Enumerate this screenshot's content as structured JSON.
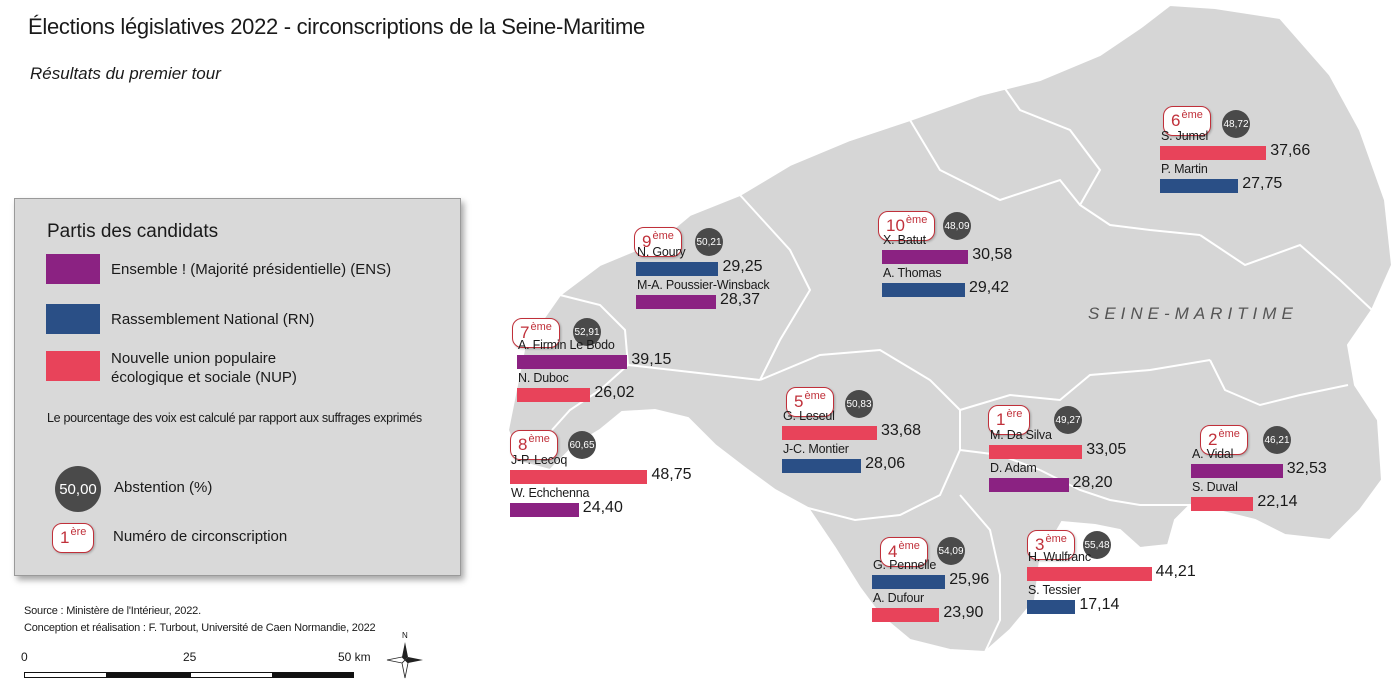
{
  "title": "Élections législatives 2022 - circonscriptions de la Seine-Maritime",
  "subtitle": "Résultats du premier tour",
  "department_label": "SEINE-MARITIME",
  "colors": {
    "ENS": "#8b2282",
    "RN": "#2a4f86",
    "NUP": "#e8435a",
    "abstention": "#4a4a4a",
    "land": "#d6d6d6",
    "circ_badge": "#c0303a"
  },
  "legend": {
    "title": "Partis des candidats",
    "parties": [
      {
        "code": "ENS",
        "label_line1": "Ensemble ! (Majorité présidentielle) (ENS)",
        "label_line2": ""
      },
      {
        "code": "RN",
        "label_line1": "Rassemblement National (RN)",
        "label_line2": ""
      },
      {
        "code": "NUP",
        "label_line1": "Nouvelle union populaire",
        "label_line2": "écologique et sociale (NUP)"
      }
    ],
    "note": "Le pourcentage des voix est calculé par rapport aux suffrages exprimés",
    "abstention_example": "50,00",
    "abstention_label": "Abstention (%)",
    "circ_example_num": "1",
    "circ_example_sup": "ère",
    "circ_label": "Numéro de circonscription"
  },
  "circonscriptions": [
    {
      "num": "1",
      "sup": "ère",
      "abstention": "49,27",
      "candidates": [
        {
          "name": "M. Da Silva",
          "party": "NUP",
          "score": 33.05,
          "score_label": "33,05"
        },
        {
          "name": "D. Adam",
          "party": "ENS",
          "score": 28.2,
          "score_label": "28,20"
        }
      ]
    },
    {
      "num": "2",
      "sup": "ème",
      "abstention": "46,21",
      "candidates": [
        {
          "name": "A. Vidal",
          "party": "ENS",
          "score": 32.53,
          "score_label": "32,53"
        },
        {
          "name": "S. Duval",
          "party": "NUP",
          "score": 22.14,
          "score_label": "22,14"
        }
      ]
    },
    {
      "num": "3",
      "sup": "ème",
      "abstention": "55,48",
      "candidates": [
        {
          "name": "H. Wulfranc",
          "party": "NUP",
          "score": 44.21,
          "score_label": "44,21"
        },
        {
          "name": "S. Tessier",
          "party": "RN",
          "score": 17.14,
          "score_label": "17,14"
        }
      ]
    },
    {
      "num": "4",
      "sup": "ème",
      "abstention": "54,09",
      "candidates": [
        {
          "name": "G. Pennelle",
          "party": "RN",
          "score": 25.96,
          "score_label": "25,96"
        },
        {
          "name": "A. Dufour",
          "party": "NUP",
          "score": 23.9,
          "score_label": "23,90"
        }
      ]
    },
    {
      "num": "5",
      "sup": "ème",
      "abstention": "50,83",
      "candidates": [
        {
          "name": "G. Leseul",
          "party": "NUP",
          "score": 33.68,
          "score_label": "33,68"
        },
        {
          "name": "J-C. Montier",
          "party": "RN",
          "score": 28.06,
          "score_label": "28,06"
        }
      ]
    },
    {
      "num": "6",
      "sup": "ème",
      "abstention": "48,72",
      "candidates": [
        {
          "name": "S. Jumel",
          "party": "NUP",
          "score": 37.66,
          "score_label": "37,66"
        },
        {
          "name": "P. Martin",
          "party": "RN",
          "score": 27.75,
          "score_label": "27,75"
        }
      ]
    },
    {
      "num": "7",
      "sup": "ème",
      "abstention": "52,91",
      "candidates": [
        {
          "name": "A. Firmin Le Bodo",
          "party": "ENS",
          "score": 39.15,
          "score_label": "39,15"
        },
        {
          "name": "N. Duboc",
          "party": "NUP",
          "score": 26.02,
          "score_label": "26,02"
        }
      ]
    },
    {
      "num": "8",
      "sup": "ème",
      "abstention": "60,65",
      "candidates": [
        {
          "name": "J-P. Lecoq",
          "party": "NUP",
          "score": 48.75,
          "score_label": "48,75"
        },
        {
          "name": "W. Echchenna",
          "party": "ENS",
          "score": 24.4,
          "score_label": "24,40"
        }
      ]
    },
    {
      "num": "9",
      "sup": "ème",
      "abstention": "50,21",
      "candidates": [
        {
          "name": "N. Goury",
          "party": "RN",
          "score": 29.25,
          "score_label": "29,25"
        },
        {
          "name": "M-A. Poussier-Winsback",
          "party": "ENS",
          "score": 28.37,
          "score_label": "28,37"
        }
      ]
    },
    {
      "num": "10",
      "sup": "ème",
      "abstention": "48,09",
      "candidates": [
        {
          "name": "X. Batut",
          "party": "ENS",
          "score": 30.58,
          "score_label": "30,58"
        },
        {
          "name": "A. Thomas",
          "party": "RN",
          "score": 29.42,
          "score_label": "29,42"
        }
      ]
    }
  ],
  "source_line1": "Source : Ministère de l'Intérieur, 2022.",
  "source_line2": "Conception et réalisation : F. Turbout, Université de Caen Normandie, 2022",
  "scale": {
    "label_0": "0",
    "label_25": "25",
    "label_50": "50 km"
  },
  "north_label": "N"
}
